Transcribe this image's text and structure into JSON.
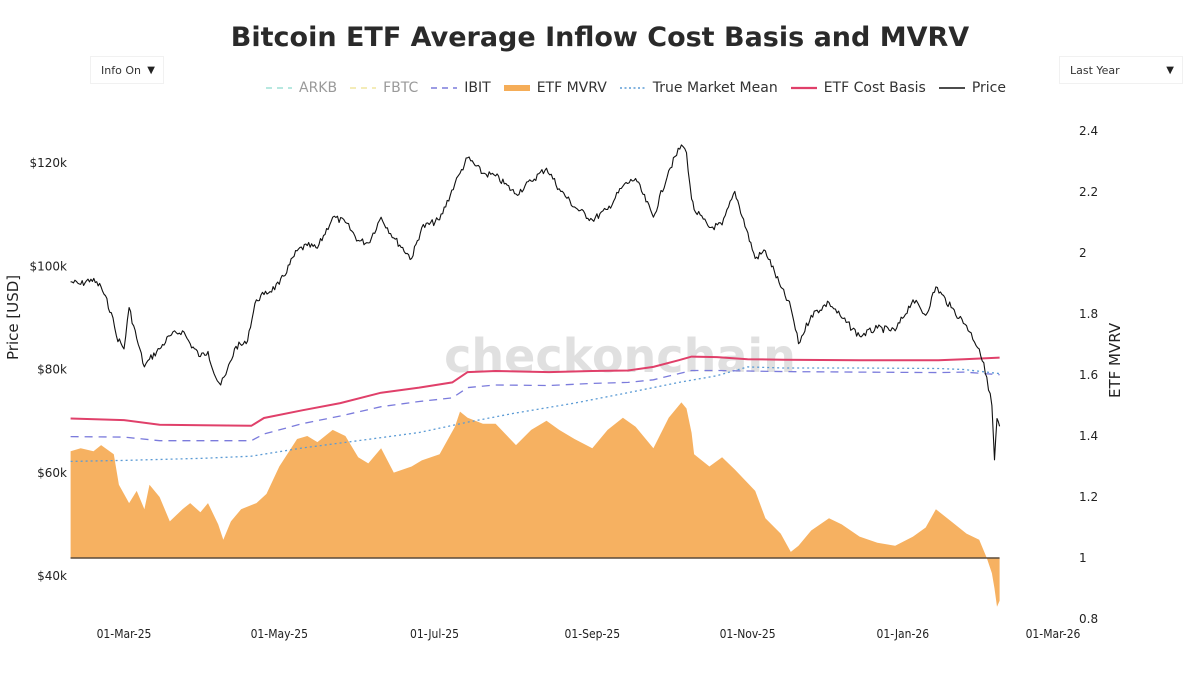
{
  "title": "Bitcoin ETF Average Inflow Cost Basis and MVRV",
  "controls": {
    "info_dropdown": {
      "selected": "Info On",
      "arrow": "▼"
    },
    "range_dropdown": {
      "selected": "Last Year",
      "arrow": "▼"
    }
  },
  "watermark": "checkonchain",
  "colors": {
    "ARKB": "#9fe0d6",
    "FBTC": "#f0e6a0",
    "IBIT": "#7b7bdc",
    "ETF MVRV": "#f5ad58",
    "True Market Mean": "#5b9bd5",
    "ETF Cost Basis": "#e0406a",
    "Price": "#111111",
    "baseline": "#5a4a3a"
  },
  "chart_data": {
    "type": "line",
    "title": "Bitcoin ETF Average Inflow Cost Basis and MVRV",
    "xlabel": "",
    "ylabel": "Price [USD]",
    "y2label": "ETF MVRV",
    "x_ticks": [
      "01-Mar-25",
      "01-May-25",
      "01-Jul-25",
      "01-Sep-25",
      "01-Nov-25",
      "01-Jan-26",
      "01-Mar-26"
    ],
    "x_tick_dates": [
      "2025-03-01",
      "2025-05-01",
      "2025-07-01",
      "2025-09-01",
      "2025-11-01",
      "2026-01-01",
      "2026-03-01"
    ],
    "xlim": [
      "2025-02-08",
      "2026-03-10"
    ],
    "y_ticks": [
      "$40k",
      "$60k",
      "$80k",
      "$100k",
      "$120k"
    ],
    "y_tick_values": [
      40000,
      60000,
      80000,
      100000,
      120000
    ],
    "ylim": [
      34000,
      128000
    ],
    "y2_ticks": [
      "0.8",
      "1",
      "1.2",
      "1.4",
      "1.6",
      "1.8",
      "2",
      "2.2",
      "2.4"
    ],
    "y2_tick_values": [
      0.8,
      1.0,
      1.2,
      1.4,
      1.6,
      1.8,
      2.0,
      2.2,
      2.4
    ],
    "y2lim": [
      0.78,
      2.5
    ],
    "mvrv_baseline": 1.0,
    "grid": false,
    "legend_position": "top-center",
    "legend": [
      {
        "name": "ARKB",
        "style": "dash",
        "visible": false
      },
      {
        "name": "FBTC",
        "style": "dash",
        "visible": false
      },
      {
        "name": "IBIT",
        "style": "dash",
        "visible": true
      },
      {
        "name": "ETF MVRV",
        "style": "area",
        "visible": true
      },
      {
        "name": "True Market Mean",
        "style": "dot",
        "visible": true
      },
      {
        "name": "ETF Cost Basis",
        "style": "solid",
        "visible": true
      },
      {
        "name": "Price",
        "style": "solid",
        "visible": true
      }
    ],
    "series": [
      {
        "name": "Price",
        "axis": "left",
        "dates": [
          "2025-02-08",
          "2025-02-12",
          "2025-02-16",
          "2025-02-20",
          "2025-02-24",
          "2025-02-26",
          "2025-03-01",
          "2025-03-03",
          "2025-03-06",
          "2025-03-09",
          "2025-03-11",
          "2025-03-15",
          "2025-03-19",
          "2025-03-24",
          "2025-03-27",
          "2025-03-31",
          "2025-04-03",
          "2025-04-06",
          "2025-04-08",
          "2025-04-10",
          "2025-04-14",
          "2025-04-18",
          "2025-04-22",
          "2025-04-25",
          "2025-05-01",
          "2025-05-08",
          "2025-05-12",
          "2025-05-16",
          "2025-05-22",
          "2025-05-27",
          "2025-06-01",
          "2025-06-05",
          "2025-06-10",
          "2025-06-15",
          "2025-06-22",
          "2025-06-26",
          "2025-07-03",
          "2025-07-09",
          "2025-07-11",
          "2025-07-14",
          "2025-07-20",
          "2025-07-25",
          "2025-08-02",
          "2025-08-08",
          "2025-08-14",
          "2025-08-19",
          "2025-08-25",
          "2025-09-01",
          "2025-09-07",
          "2025-09-13",
          "2025-09-18",
          "2025-09-25",
          "2025-10-01",
          "2025-10-06",
          "2025-10-08",
          "2025-10-10",
          "2025-10-11",
          "2025-10-17",
          "2025-10-22",
          "2025-10-27",
          "2025-11-04",
          "2025-11-08",
          "2025-11-14",
          "2025-11-18",
          "2025-11-21",
          "2025-11-26",
          "2025-12-03",
          "2025-12-08",
          "2025-12-15",
          "2025-12-22",
          "2025-12-29",
          "2026-01-05",
          "2026-01-10",
          "2026-01-14",
          "2026-01-20",
          "2026-01-26",
          "2026-01-31",
          "2026-02-03",
          "2026-02-05",
          "2026-02-06",
          "2026-02-07",
          "2026-02-08"
        ],
        "values": [
          97000,
          96500,
          97500,
          96000,
          91000,
          86500,
          84000,
          92000,
          86000,
          80500,
          82000,
          84000,
          86500,
          87500,
          85000,
          82500,
          83500,
          78500,
          77000,
          79000,
          84500,
          85000,
          93500,
          94500,
          96500,
          103000,
          104000,
          103500,
          109500,
          108500,
          105000,
          104500,
          109500,
          105500,
          101500,
          107500,
          109000,
          116000,
          118000,
          121000,
          118000,
          117500,
          114000,
          116500,
          119000,
          115000,
          111500,
          109000,
          111000,
          115500,
          117000,
          109500,
          118500,
          123500,
          122000,
          113000,
          111000,
          107500,
          108000,
          114500,
          101500,
          103000,
          96000,
          92000,
          85000,
          90500,
          93000,
          90000,
          86500,
          88000,
          87500,
          93500,
          90500,
          96000,
          92000,
          88500,
          84000,
          78500,
          73000,
          62500,
          70500,
          69000
        ]
      },
      {
        "name": "ETF Cost Basis",
        "axis": "left",
        "dates": [
          "2025-02-08",
          "2025-03-01",
          "2025-03-15",
          "2025-04-01",
          "2025-04-20",
          "2025-04-25",
          "2025-05-10",
          "2025-05-25",
          "2025-06-10",
          "2025-06-25",
          "2025-07-08",
          "2025-07-14",
          "2025-07-25",
          "2025-08-15",
          "2025-09-01",
          "2025-09-15",
          "2025-09-25",
          "2025-10-05",
          "2025-10-10",
          "2025-10-20",
          "2025-11-01",
          "2025-11-15",
          "2025-12-15",
          "2026-01-15",
          "2026-01-25",
          "2026-02-08"
        ],
        "values": [
          70500,
          70200,
          69300,
          69200,
          69100,
          70600,
          72100,
          73500,
          75500,
          76500,
          77500,
          79500,
          79700,
          79500,
          79700,
          79800,
          80500,
          81800,
          82500,
          82400,
          82000,
          81900,
          81800,
          81800,
          82000,
          82300
        ]
      },
      {
        "name": "IBIT",
        "axis": "left",
        "dates": [
          "2025-02-08",
          "2025-03-01",
          "2025-03-15",
          "2025-04-20",
          "2025-04-25",
          "2025-05-10",
          "2025-05-25",
          "2025-06-10",
          "2025-06-25",
          "2025-07-08",
          "2025-07-14",
          "2025-07-25",
          "2025-08-15",
          "2025-09-01",
          "2025-09-15",
          "2025-09-25",
          "2025-10-05",
          "2025-10-10",
          "2025-10-20",
          "2025-11-01",
          "2025-11-15",
          "2025-12-15",
          "2026-01-15",
          "2026-01-25",
          "2026-02-08"
        ],
        "values": [
          67000,
          66900,
          66200,
          66200,
          67500,
          69500,
          71000,
          72800,
          73800,
          74500,
          76500,
          77000,
          76900,
          77300,
          77500,
          78000,
          79200,
          79800,
          79800,
          79700,
          79600,
          79500,
          79400,
          79500,
          79000
        ]
      },
      {
        "name": "True Market Mean",
        "axis": "left",
        "dates": [
          "2025-02-08",
          "2025-03-01",
          "2025-04-01",
          "2025-04-20",
          "2025-05-10",
          "2025-06-01",
          "2025-06-25",
          "2025-07-14",
          "2025-08-01",
          "2025-08-25",
          "2025-09-15",
          "2025-10-05",
          "2025-10-20",
          "2025-11-01",
          "2025-11-15",
          "2025-12-15",
          "2026-01-15",
          "2026-01-25",
          "2026-02-08"
        ],
        "values": [
          62200,
          62400,
          62800,
          63200,
          64800,
          66200,
          67800,
          69800,
          71500,
          73500,
          75500,
          77500,
          78800,
          80500,
          80300,
          80300,
          80200,
          80000,
          79200
        ]
      },
      {
        "name": "ETF MVRV",
        "axis": "right",
        "dates": [
          "2025-02-08",
          "2025-02-12",
          "2025-02-17",
          "2025-02-20",
          "2025-02-25",
          "2025-02-27",
          "2025-03-03",
          "2025-03-06",
          "2025-03-09",
          "2025-03-11",
          "2025-03-15",
          "2025-03-19",
          "2025-03-24",
          "2025-03-27",
          "2025-03-31",
          "2025-04-03",
          "2025-04-07",
          "2025-04-09",
          "2025-04-12",
          "2025-04-16",
          "2025-04-22",
          "2025-04-26",
          "2025-05-01",
          "2025-05-08",
          "2025-05-12",
          "2025-05-16",
          "2025-05-22",
          "2025-05-27",
          "2025-06-01",
          "2025-06-05",
          "2025-06-10",
          "2025-06-15",
          "2025-06-22",
          "2025-06-26",
          "2025-07-03",
          "2025-07-09",
          "2025-07-11",
          "2025-07-14",
          "2025-07-20",
          "2025-07-25",
          "2025-08-02",
          "2025-08-08",
          "2025-08-14",
          "2025-08-19",
          "2025-08-25",
          "2025-09-01",
          "2025-09-07",
          "2025-09-13",
          "2025-09-18",
          "2025-09-25",
          "2025-10-01",
          "2025-10-06",
          "2025-10-08",
          "2025-10-10",
          "2025-10-11",
          "2025-10-17",
          "2025-10-22",
          "2025-10-27",
          "2025-11-04",
          "2025-11-08",
          "2025-11-14",
          "2025-11-18",
          "2025-11-21",
          "2025-11-26",
          "2025-12-03",
          "2025-12-08",
          "2025-12-15",
          "2025-12-22",
          "2025-12-29",
          "2026-01-05",
          "2026-01-10",
          "2026-01-14",
          "2026-01-20",
          "2026-01-26",
          "2026-01-31",
          "2026-02-03",
          "2026-02-05",
          "2026-02-06",
          "2026-02-07",
          "2026-02-08"
        ],
        "values": [
          1.35,
          1.36,
          1.35,
          1.37,
          1.34,
          1.24,
          1.18,
          1.22,
          1.16,
          1.24,
          1.2,
          1.12,
          1.16,
          1.18,
          1.15,
          1.18,
          1.11,
          1.06,
          1.12,
          1.16,
          1.18,
          1.21,
          1.3,
          1.39,
          1.4,
          1.38,
          1.42,
          1.4,
          1.33,
          1.31,
          1.36,
          1.28,
          1.3,
          1.32,
          1.34,
          1.43,
          1.48,
          1.46,
          1.44,
          1.44,
          1.37,
          1.42,
          1.45,
          1.42,
          1.39,
          1.36,
          1.42,
          1.46,
          1.43,
          1.36,
          1.46,
          1.51,
          1.49,
          1.41,
          1.34,
          1.3,
          1.33,
          1.29,
          1.22,
          1.13,
          1.08,
          1.02,
          1.04,
          1.09,
          1.13,
          1.11,
          1.07,
          1.05,
          1.04,
          1.07,
          1.1,
          1.16,
          1.12,
          1.08,
          1.06,
          1.0,
          0.95,
          0.9,
          0.84,
          0.86
        ]
      }
    ]
  }
}
